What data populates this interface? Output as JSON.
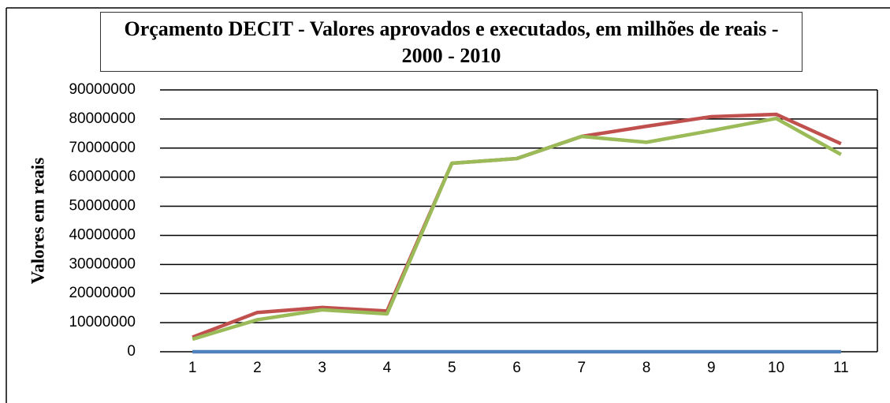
{
  "chart_data": {
    "type": "line",
    "title": "Orçamento DECIT - Valores aprovados e executados, em milhões de reais - 2000 - 2010",
    "y_label": "Valores em reais",
    "categories": [
      "1",
      "2",
      "3",
      "4",
      "5",
      "6",
      "7",
      "8",
      "9",
      "10",
      "11"
    ],
    "series": [
      {
        "color": "#4f81bd",
        "values": [
          0,
          0,
          0,
          0,
          0,
          0,
          0,
          0,
          0,
          0,
          0
        ]
      },
      {
        "color": "#c0504d",
        "values": [
          5000000,
          13500000,
          15200000,
          14000000,
          64800000,
          66400000,
          74000000,
          77500000,
          80800000,
          81600000,
          71500000
        ]
      },
      {
        "color": "#9bbb59",
        "values": [
          4300000,
          11000000,
          14400000,
          13000000,
          64800000,
          66400000,
          74000000,
          72000000,
          76000000,
          80200000,
          67800000
        ]
      }
    ],
    "ylim": [
      0,
      90000000
    ],
    "yticks": [
      0,
      10000000,
      20000000,
      30000000,
      40000000,
      50000000,
      60000000,
      70000000,
      80000000,
      90000000
    ],
    "grid": true
  }
}
